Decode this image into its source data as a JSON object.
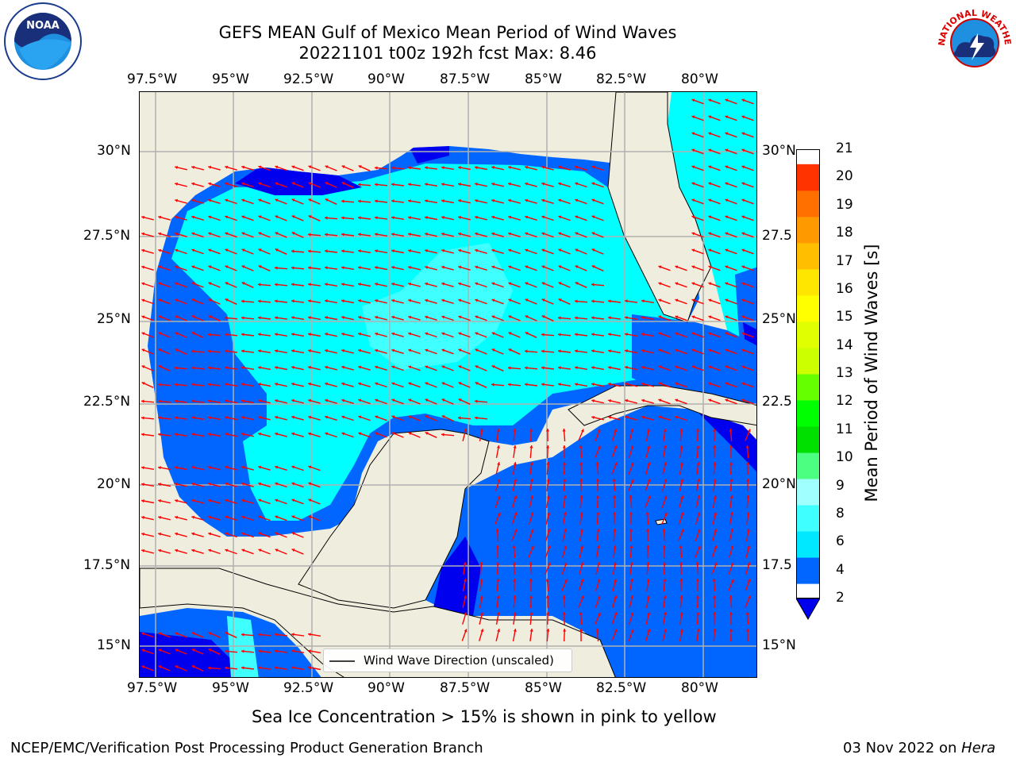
{
  "title_line1": "GEFS MEAN Gulf of Mexico Mean Period of Wind Waves",
  "title_line2": "20221101 t00z 192h fcst   Max: 8.46",
  "logos": {
    "left": "NOAA",
    "right": "NATIONAL WEATHER SERVICE",
    "left_icon": "noaa-logo-icon",
    "right_icon": "nws-logo-icon"
  },
  "lon_labels": [
    "97.5°W",
    "95°W",
    "92.5°W",
    "90°W",
    "87.5°W",
    "85°W",
    "82.5°W",
    "80°W"
  ],
  "lat_labels_left": [
    "30°N",
    "27.5°N",
    "25°N",
    "22.5°N",
    "20°N",
    "17.5°N",
    "15°N"
  ],
  "lat_labels_right": [
    "30°N",
    "27.5",
    "25°N",
    "22.5",
    "20°N",
    "17.5",
    "15°N"
  ],
  "colorbar": {
    "title": "Mean Period of Wind Waves [s]",
    "levels": [
      "2",
      "4",
      "6",
      "8",
      "9",
      "10",
      "11",
      "12",
      "13",
      "14",
      "15",
      "16",
      "17",
      "18",
      "19",
      "20",
      "21"
    ],
    "colors": [
      "#0066ff",
      "#00e8ff",
      "#40ffff",
      "#a0ffff",
      "#4cff80",
      "#00e000",
      "#00ff00",
      "#66ff00",
      "#ccff00",
      "#e0ff00",
      "#ffff00",
      "#ffe600",
      "#ffbf00",
      "#ff9900",
      "#ff7000",
      "#ff3300",
      "#ff0000"
    ],
    "under_color": "#0000ee"
  },
  "legend": {
    "label": "Wind Wave Direction (unscaled)"
  },
  "note": "Sea Ice Concentration > 15% is shown in pink to yellow",
  "footer_left": "NCEP/EMC/Verification Post Processing Product Generation Branch",
  "footer_date": "03 Nov 2022 on ",
  "footer_machine": "Hera",
  "map_colors": {
    "land": "#efedde",
    "ocean_deep": "#0000ee",
    "ocean_blue": "#0066ff",
    "ocean_cyan": "#00ffff",
    "ocean_light": "#40ffff",
    "arrow": "#ff0000",
    "grid": "#b0b0b0"
  }
}
